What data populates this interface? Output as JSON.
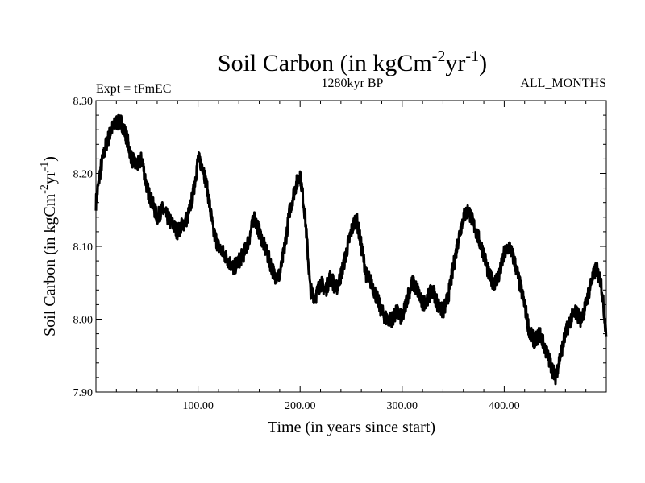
{
  "chart_data": {
    "type": "line",
    "title": {
      "main": "Soil Carbon (in kgCm",
      "sup1": "-2",
      "mid": "yr",
      "sup2": "-1",
      "end": ")"
    },
    "expt_label": "Expt = tFmEC",
    "subtitle": "1280kyr BP",
    "season_label": "ALL_MONTHS",
    "xlabel": "Time (in years since start)",
    "ylabel": {
      "main": "Soil Carbon (in kgCm",
      "sup1": "-2",
      "mid": "yr",
      "sup2": "-1",
      "end": ")"
    },
    "xlim": [
      0,
      500
    ],
    "ylim": [
      7.9,
      8.3
    ],
    "xticks": [
      100,
      200,
      300,
      400
    ],
    "xtick_labels": [
      "100.00",
      "200.00",
      "300.00",
      "400.00"
    ],
    "yticks": [
      7.9,
      8.0,
      8.1,
      8.2,
      8.3
    ],
    "ytick_labels": [
      "7.90",
      "8.00",
      "8.10",
      "8.20",
      "8.30"
    ],
    "line_color": "#000000",
    "series": [
      {
        "name": "Soil Carbon",
        "x": [
          0,
          5,
          10,
          15,
          20,
          25,
          30,
          35,
          40,
          45,
          50,
          55,
          60,
          65,
          70,
          75,
          80,
          85,
          90,
          95,
          100,
          105,
          110,
          115,
          120,
          125,
          130,
          135,
          140,
          145,
          150,
          155,
          160,
          165,
          170,
          175,
          180,
          185,
          190,
          195,
          200,
          205,
          210,
          215,
          220,
          225,
          230,
          235,
          240,
          245,
          250,
          255,
          260,
          265,
          270,
          275,
          280,
          285,
          290,
          295,
          300,
          305,
          310,
          315,
          320,
          325,
          330,
          335,
          340,
          345,
          350,
          355,
          360,
          365,
          370,
          375,
          380,
          385,
          390,
          395,
          400,
          405,
          410,
          415,
          420,
          425,
          430,
          435,
          440,
          445,
          450,
          455,
          460,
          465,
          470,
          475,
          480,
          485,
          490,
          495,
          500
        ],
        "values": [
          8.16,
          8.21,
          8.24,
          8.26,
          8.27,
          8.27,
          8.25,
          8.22,
          8.21,
          8.22,
          8.18,
          8.16,
          8.14,
          8.15,
          8.14,
          8.13,
          8.12,
          8.13,
          8.14,
          8.17,
          8.22,
          8.21,
          8.17,
          8.12,
          8.1,
          8.09,
          8.08,
          8.07,
          8.08,
          8.09,
          8.11,
          8.14,
          8.12,
          8.1,
          8.08,
          8.06,
          8.06,
          8.1,
          8.15,
          8.18,
          8.2,
          8.14,
          8.04,
          8.03,
          8.05,
          8.04,
          8.06,
          8.04,
          8.06,
          8.09,
          8.12,
          8.14,
          8.1,
          8.06,
          8.05,
          8.03,
          8.01,
          8.0,
          8.0,
          8.01,
          8.0,
          8.03,
          8.05,
          8.04,
          8.02,
          8.03,
          8.04,
          8.02,
          8.01,
          8.03,
          8.07,
          8.11,
          8.14,
          8.15,
          8.13,
          8.11,
          8.09,
          8.06,
          8.05,
          8.06,
          8.09,
          8.1,
          8.08,
          8.05,
          8.02,
          7.98,
          7.97,
          7.98,
          7.96,
          7.94,
          7.92,
          7.95,
          7.98,
          8.0,
          8.01,
          8.0,
          8.02,
          8.05,
          8.07,
          8.05,
          7.98
        ]
      }
    ]
  }
}
